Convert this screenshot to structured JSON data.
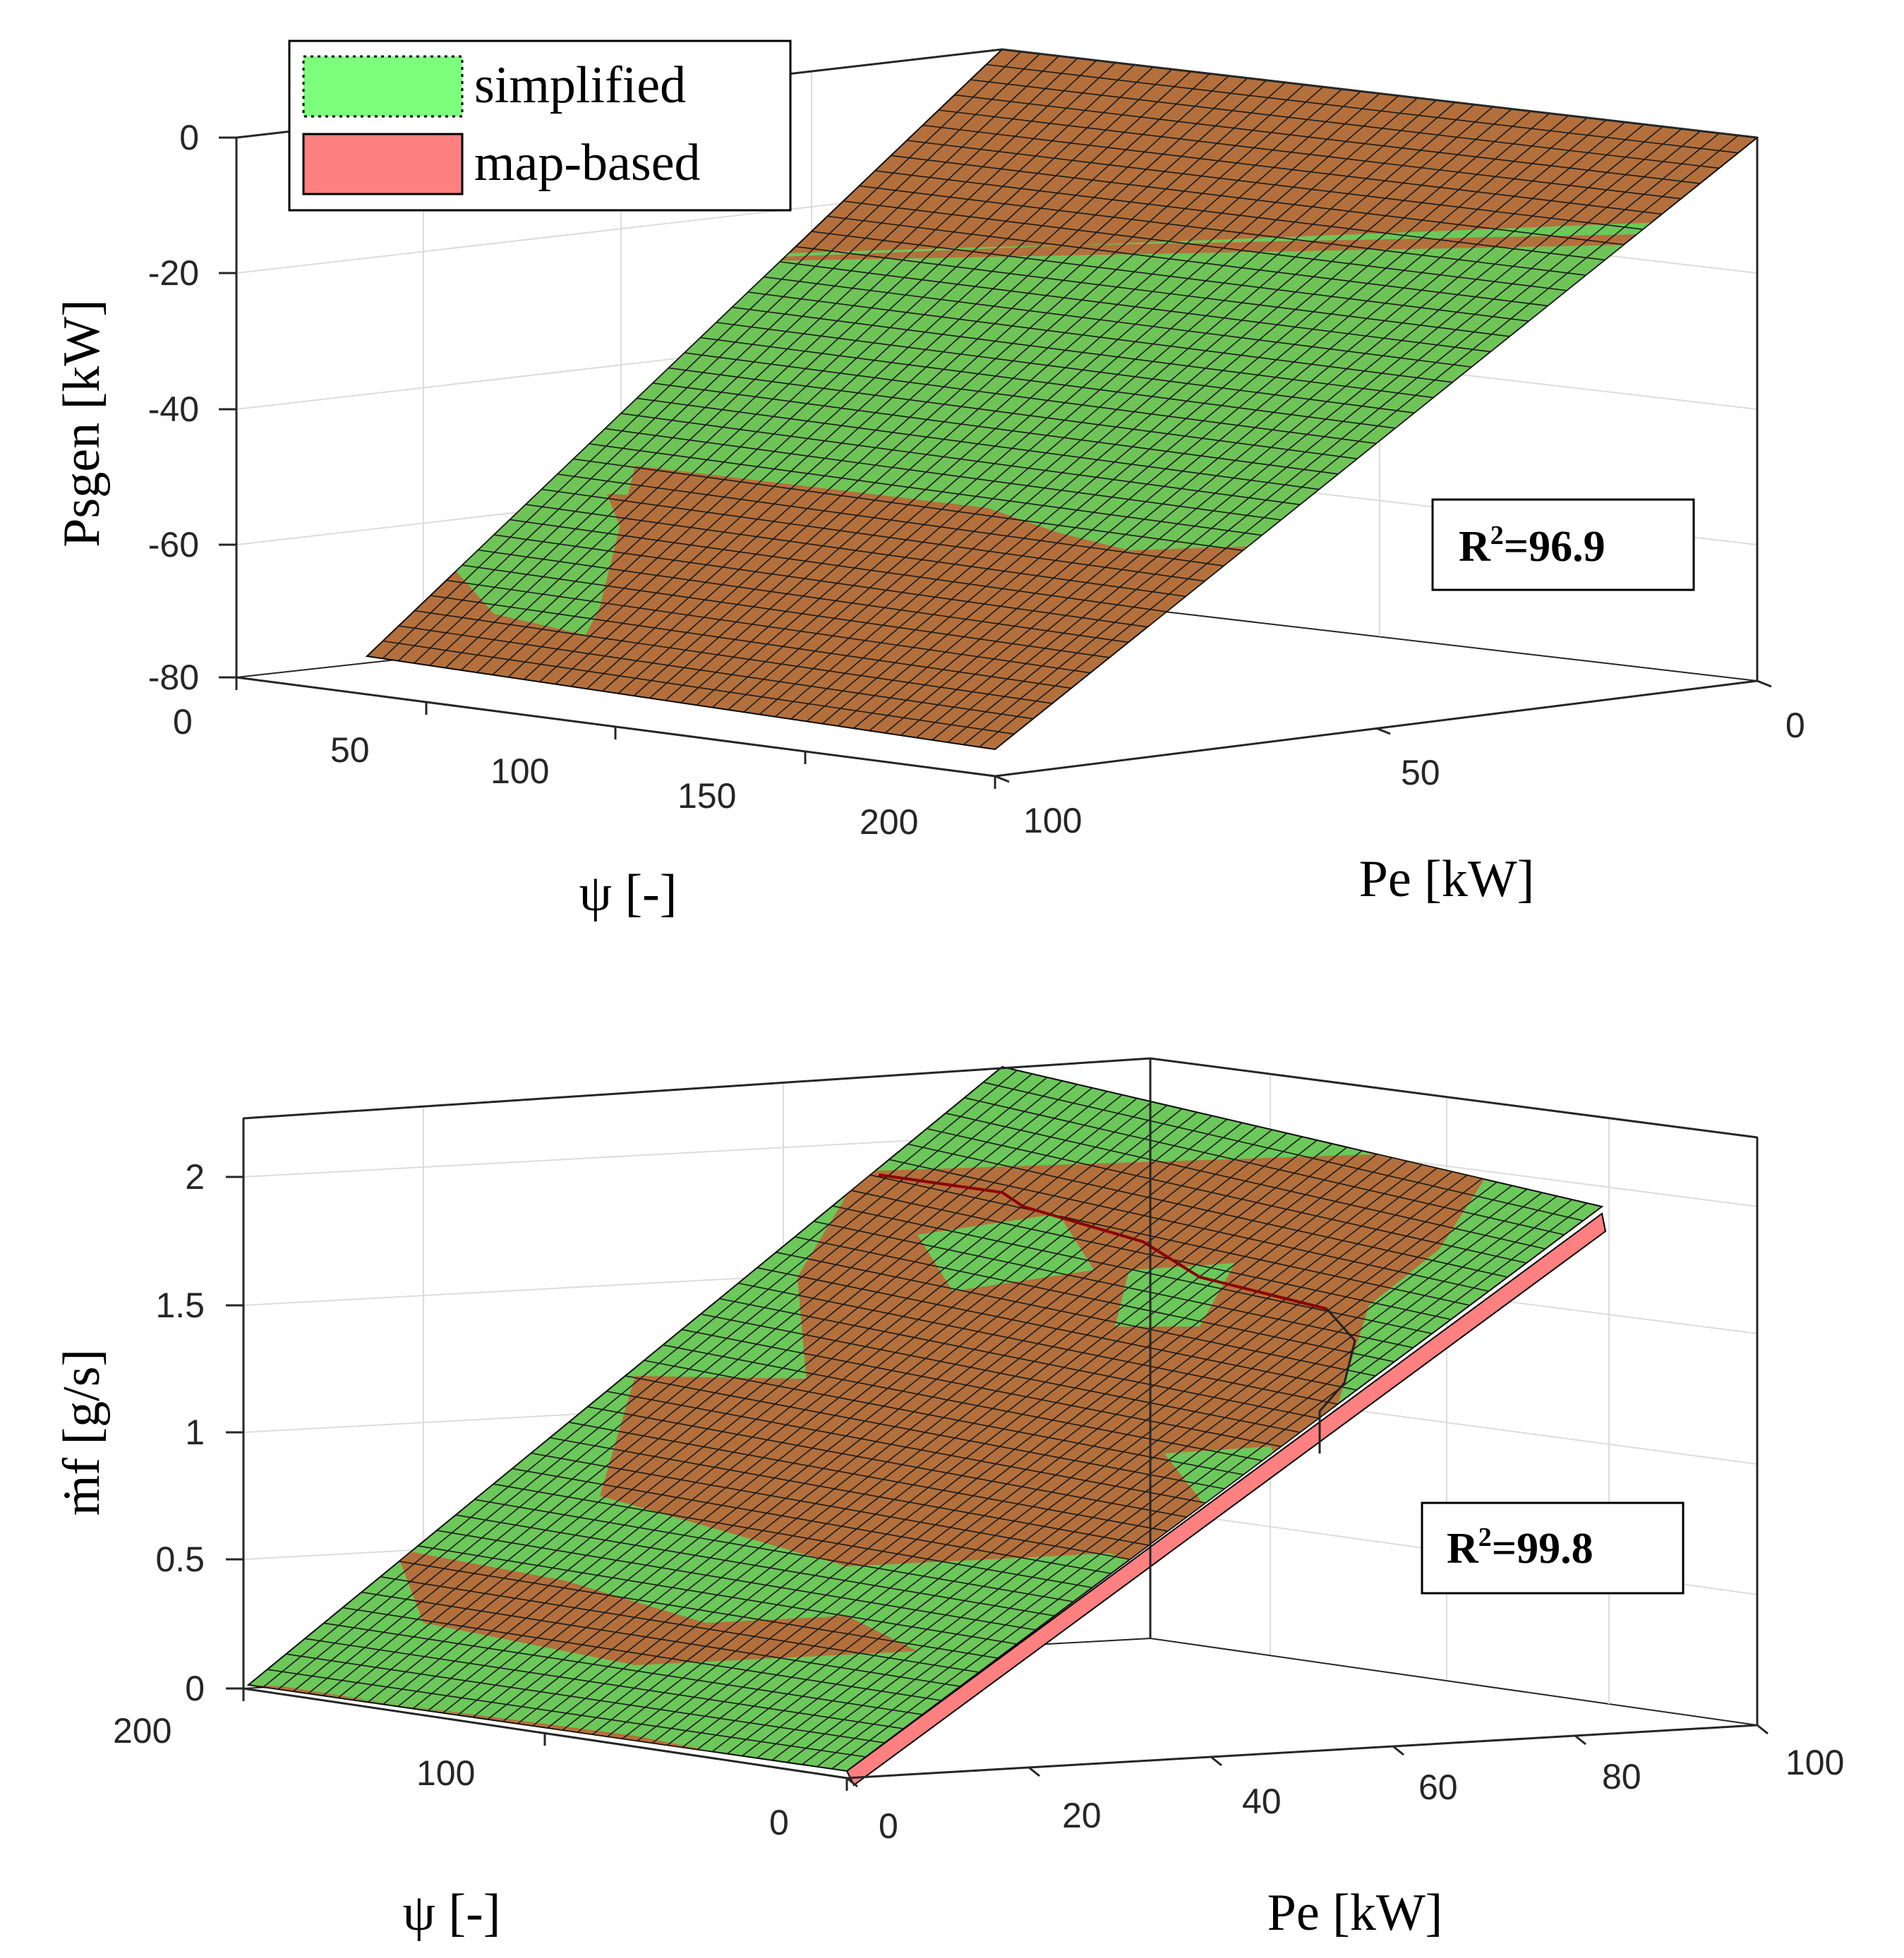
{
  "legend": {
    "items": [
      {
        "label": "simplified",
        "color": "#7dff7d",
        "edge": "dotted"
      },
      {
        "label": "map-based",
        "color": "#ff8080",
        "edge": "solid"
      }
    ]
  },
  "chart_data": [
    {
      "type": "surface",
      "title": "",
      "xlabel": "ψ [-]",
      "ylabel": "Pe [kW]",
      "zlabel": "Psgen [kW]",
      "xlim": [
        0,
        200
      ],
      "ylim": [
        0,
        100
      ],
      "zlim": [
        -80,
        0
      ],
      "xticks": [
        "0",
        "50",
        "100",
        "150",
        "200"
      ],
      "yticks": [
        "0",
        "50",
        "100"
      ],
      "zticks": [
        "0",
        "-20",
        "-40",
        "-60",
        "-80"
      ],
      "annotation": "R²=96.9",
      "r2_label": "R",
      "r2_value": "=96.9",
      "series": [
        {
          "name": "simplified",
          "color": "#7dff7d",
          "description": "planar surface Psgen ≈ -0.75·Pe"
        },
        {
          "name": "map-based",
          "color": "#ff8080",
          "description": "near-identical planar surface"
        }
      ],
      "sample_z": {
        "Pe_0": 0,
        "Pe_50": -37,
        "Pe_100": -75
      }
    },
    {
      "type": "surface",
      "title": "",
      "xlabel": "ψ [-]",
      "ylabel": "Pe [kW]",
      "zlabel": "ṁf [g/s]",
      "xlim": [
        0,
        200
      ],
      "ylim": [
        0,
        100
      ],
      "zlim": [
        0,
        2.2
      ],
      "xticks": [
        "200",
        "100",
        "0"
      ],
      "yticks": [
        "0",
        "20",
        "40",
        "60",
        "80",
        "100"
      ],
      "zticks": [
        "0",
        "0.5",
        "1",
        "1.5",
        "2"
      ],
      "annotation": "R²=99.8",
      "r2_label": "R",
      "r2_value": "=99.8",
      "series": [
        {
          "name": "simplified",
          "color": "#7dff7d",
          "description": "fuel flow rises roughly linearly with Pe up to ~2.1 g/s"
        },
        {
          "name": "map-based",
          "color": "#ff8080",
          "description": "similar surface, slightly lower at high Pe"
        }
      ],
      "sample_z": {
        "Pe_0": 0.03,
        "Pe_50": 1.0,
        "Pe_100": 2.0
      }
    }
  ]
}
